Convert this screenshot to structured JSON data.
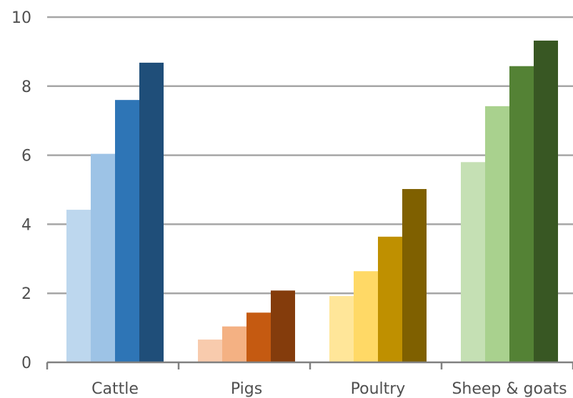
{
  "chart_data": {
    "type": "bar",
    "title": "",
    "xlabel": "",
    "ylabel": "",
    "categories": [
      "Cattle",
      "Pigs",
      "Poultry",
      "Sheep & goats"
    ],
    "ylim": [
      0,
      10
    ],
    "yticks": [
      0,
      2,
      4,
      6,
      8,
      10
    ],
    "grid": true,
    "legend": "none",
    "series_values": [
      [
        4.42,
        0.66,
        1.92,
        5.8
      ],
      [
        6.04,
        1.04,
        2.64,
        7.42
      ],
      [
        7.6,
        1.44,
        3.64,
        8.58
      ],
      [
        8.68,
        2.08,
        5.02,
        9.32
      ]
    ],
    "colors": {
      "Cattle": [
        "#bdd7ee",
        "#9dc3e6",
        "#2e75b6",
        "#1f4e79"
      ],
      "Pigs": [
        "#f8cbad",
        "#f4b183",
        "#c55a11",
        "#843c0c"
      ],
      "Poultry": [
        "#ffe699",
        "#ffd966",
        "#bf9000",
        "#7f6000"
      ],
      "Sheep & goats": [
        "#c5e0b4",
        "#a9d18e",
        "#548235",
        "#385723"
      ]
    },
    "gridline_color": "#a6a6a6",
    "axis_color": "#808080"
  }
}
